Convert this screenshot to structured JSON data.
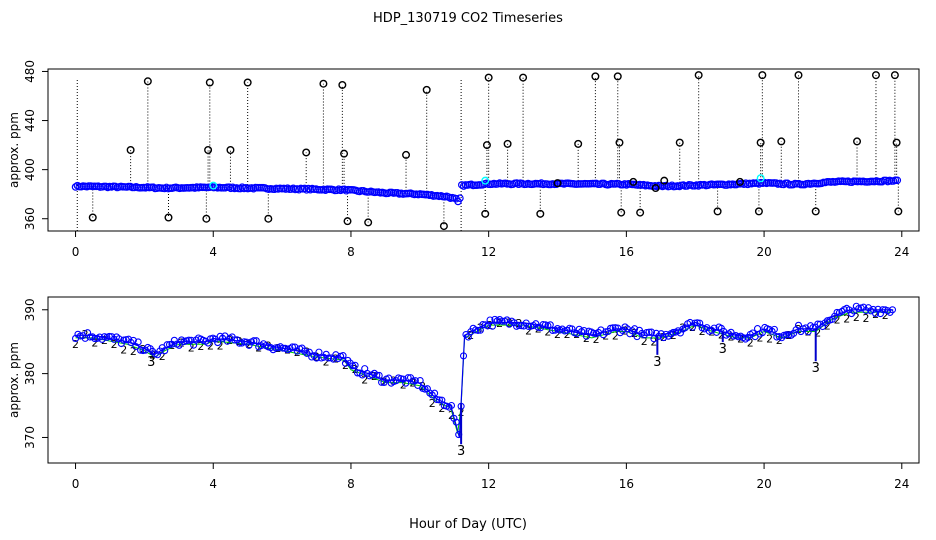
{
  "title": "HDP_130719  CO2 Timeseries",
  "xlabel": "Hour of Day (UTC)",
  "colors": {
    "raw": "#0000ff",
    "flagged": "#000000",
    "hilite": "#00ffff",
    "avg2": "#00cc00",
    "avg3": "#0000cc",
    "axis": "#000000"
  },
  "chart_data": [
    {
      "type": "scatter",
      "panel": "top",
      "ylabel": "approx. ppm",
      "xlim": [
        -0.8,
        24.5
      ],
      "ylim": [
        350,
        482
      ],
      "xticks": [
        0,
        4,
        8,
        12,
        16,
        20,
        24
      ],
      "yticks": [
        360,
        400,
        440,
        480
      ],
      "series": [
        {
          "name": "baseline",
          "knots": [
            [
              0,
              386.5
            ],
            [
              2,
              385.5
            ],
            [
              2.5,
              385
            ],
            [
              4,
              385.5
            ],
            [
              6,
              384.5
            ],
            [
              7.8,
              383.5
            ],
            [
              9,
              381
            ],
            [
              10,
              380
            ],
            [
              10.8,
              378
            ],
            [
              11.05,
              376
            ],
            [
              11.15,
              372
            ],
            [
              11.2,
              387
            ],
            [
              12,
              388.5
            ],
            [
              14,
              388.5
            ],
            [
              16,
              388
            ],
            [
              17,
              386.5
            ],
            [
              19,
              388
            ],
            [
              20,
              389
            ],
            [
              21,
              388
            ],
            [
              22,
              390
            ],
            [
              23.9,
              391
            ]
          ]
        },
        {
          "name": "outliers",
          "x": [
            0.5,
            1.6,
            2.1,
            2.7,
            3.8,
            3.85,
            3.9,
            4.5,
            5.0,
            5.6,
            6.7,
            7.2,
            7.75,
            7.8,
            7.9,
            8.5,
            9.6,
            10.2,
            10.7,
            11.9,
            11.95,
            12.0,
            12.55,
            13.0,
            13.5,
            14.0,
            14.6,
            15.1,
            15.75,
            15.8,
            15.85,
            16.2,
            16.4,
            16.85,
            17.1,
            17.55,
            18.1,
            18.65,
            19.3,
            19.85,
            19.9,
            19.95,
            20.5,
            21.0,
            21.5,
            22.7,
            23.25,
            23.8,
            23.85,
            23.9
          ],
          "y": [
            361,
            416,
            472,
            361,
            360,
            416,
            471,
            416,
            471,
            360,
            414,
            470,
            469,
            413,
            358,
            357,
            412,
            465,
            354,
            364,
            420,
            475,
            421,
            475,
            364,
            389,
            421,
            476,
            476,
            422,
            365,
            390,
            365,
            385,
            391,
            422,
            477,
            366,
            390,
            366,
            422,
            477,
            423,
            477,
            366,
            423,
            477,
            477,
            422,
            366
          ]
        },
        {
          "name": "cyan highlights",
          "x": [
            4.0,
            11.9,
            19.9
          ],
          "y": [
            387,
            391,
            393
          ]
        }
      ],
      "stems": [
        0.05,
        11.2
      ]
    },
    {
      "type": "scatter",
      "panel": "bottom",
      "ylabel": "approx. ppm",
      "xlim": [
        -0.8,
        24.5
      ],
      "ylim": [
        366,
        392
      ],
      "xticks": [
        0,
        4,
        8,
        12,
        16,
        20,
        24
      ],
      "yticks": [
        370,
        380,
        390
      ],
      "series": [
        {
          "name": "averages",
          "knots": [
            [
              0,
              386
            ],
            [
              0.5,
              386
            ],
            [
              1,
              385.5
            ],
            [
              1.5,
              385
            ],
            [
              2,
              384
            ],
            [
              2.3,
              383
            ],
            [
              2.6,
              384
            ],
            [
              3,
              385
            ],
            [
              3.8,
              385
            ],
            [
              4,
              385.5
            ],
            [
              5,
              385
            ],
            [
              6,
              384
            ],
            [
              7,
              383
            ],
            [
              7.8,
              382.5
            ],
            [
              8,
              381
            ],
            [
              9,
              379
            ],
            [
              9.5,
              379
            ],
            [
              10,
              378.5
            ],
            [
              10.5,
              376
            ],
            [
              10.9,
              375
            ],
            [
              11.1,
              371
            ],
            [
              11.15,
              370
            ],
            [
              11.3,
              386
            ],
            [
              12,
              388
            ],
            [
              13,
              388
            ],
            [
              14,
              387
            ],
            [
              15,
              386
            ],
            [
              15.7,
              387
            ],
            [
              16,
              387
            ],
            [
              16.5,
              386
            ],
            [
              17,
              386
            ],
            [
              17.6,
              387
            ],
            [
              18,
              388
            ],
            [
              18.5,
              387
            ],
            [
              19.2,
              386
            ],
            [
              19.6,
              386
            ],
            [
              20,
              387
            ],
            [
              20.5,
              386
            ],
            [
              21,
              387
            ],
            [
              21.5,
              387
            ],
            [
              22,
              389
            ],
            [
              22.5,
              390
            ],
            [
              23,
              390
            ],
            [
              23.8,
              390
            ]
          ]
        },
        {
          "name": "label 3 dips",
          "x": [
            2.2,
            11.2,
            16.9,
            18.8,
            21.5
          ],
          "y": [
            382,
            368,
            382,
            384,
            381
          ]
        }
      ]
    }
  ]
}
